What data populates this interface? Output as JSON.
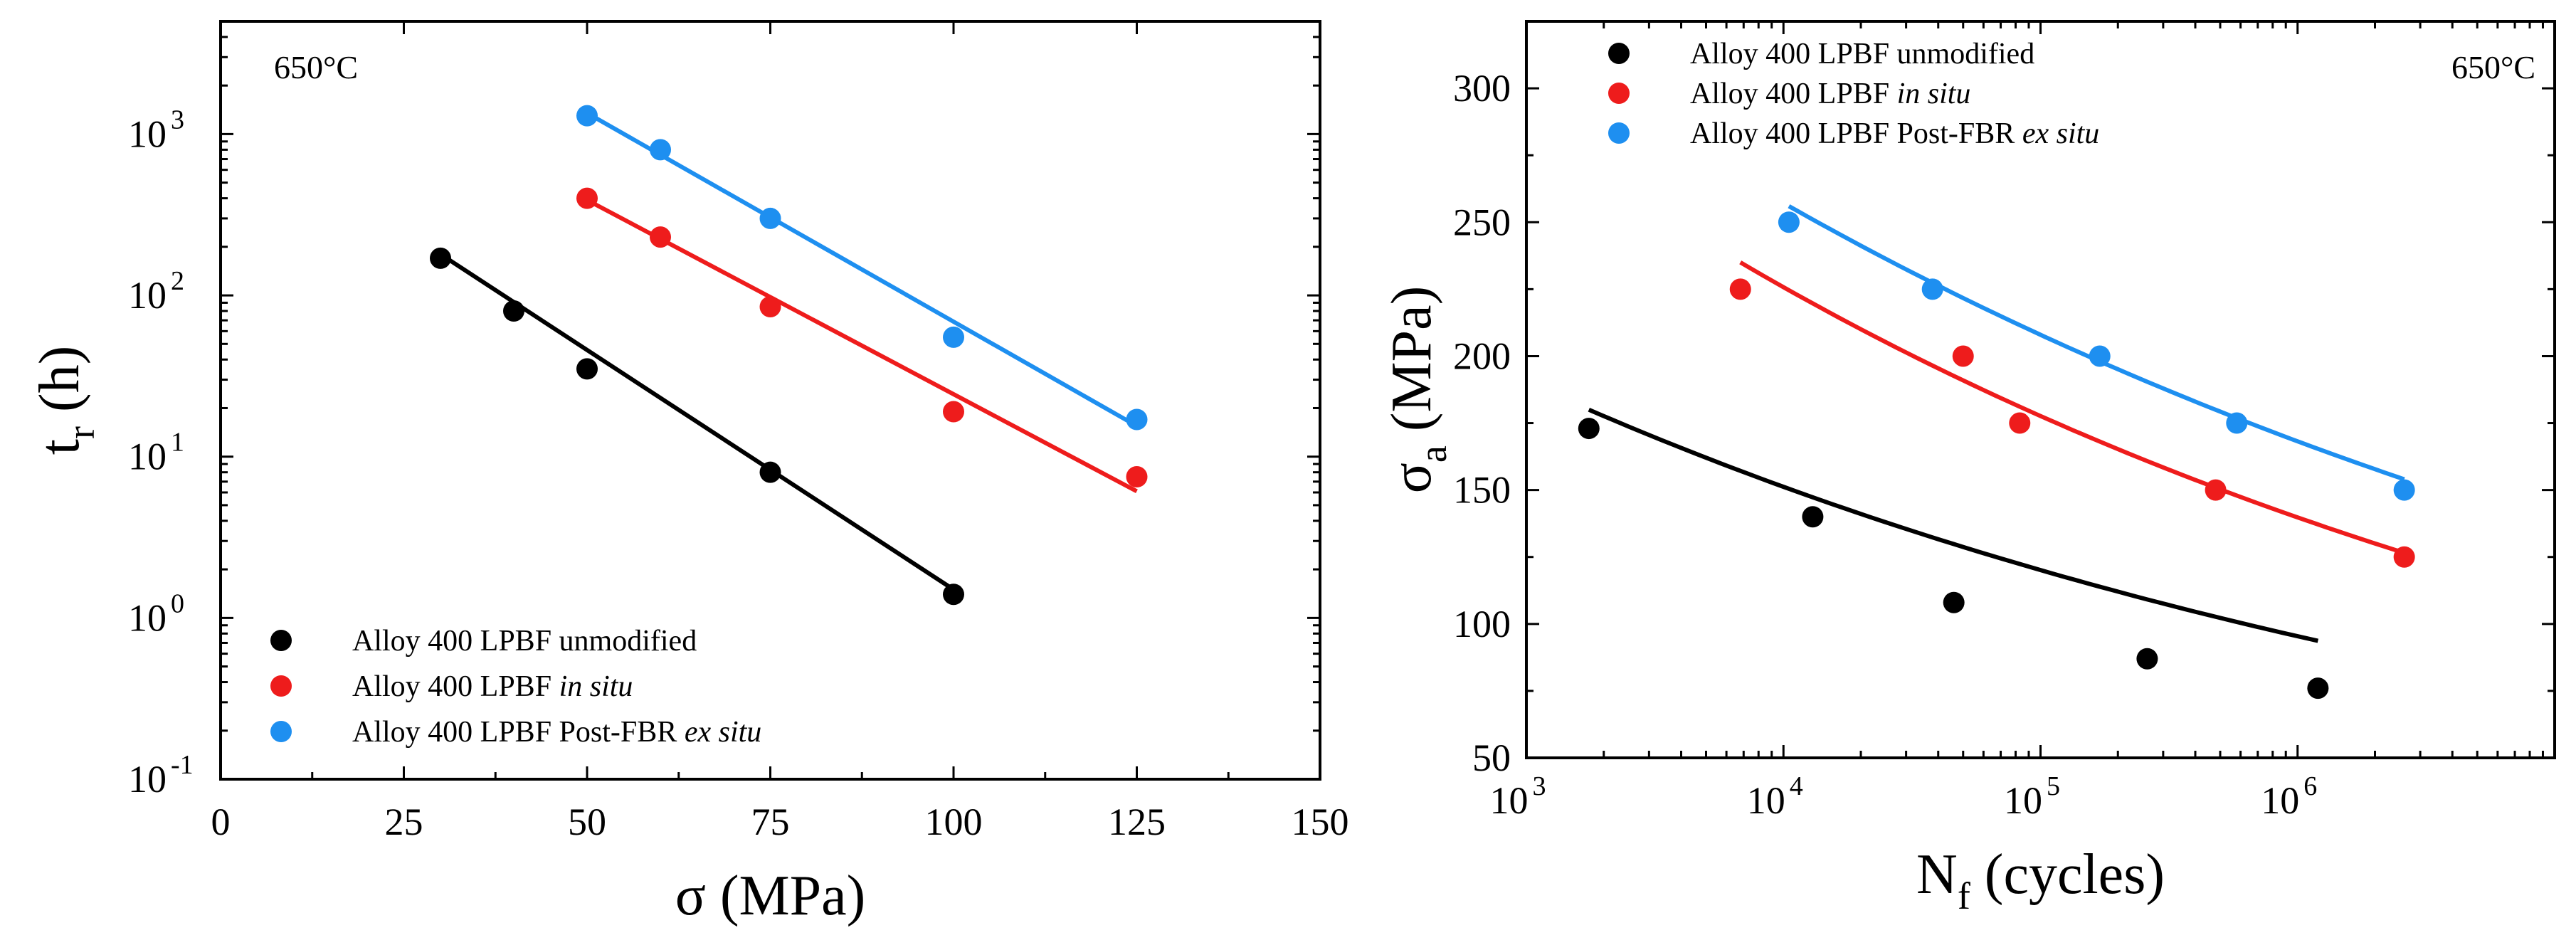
{
  "chart_data": [
    {
      "type": "scatter",
      "id": "creep",
      "annotation": "650°C",
      "xlabel": "σ (MPa)",
      "ylabel": "t",
      "ylabel_sub": "r",
      "ylabel_suffix": " (h)",
      "xscale": "linear",
      "yscale": "log",
      "xlim": [
        0,
        150
      ],
      "ylim": [
        0.1,
        5000
      ],
      "xticks": [
        0,
        25,
        50,
        75,
        100,
        125,
        150
      ],
      "xticklabels": [
        "0",
        "25",
        "50",
        "75",
        "100",
        "125",
        "150"
      ],
      "yticks": [
        0.1,
        1,
        10,
        100,
        1000
      ],
      "yticklabels": [
        {
          "base": "10",
          "exp": "-1"
        },
        {
          "base": "10",
          "exp": "0"
        },
        {
          "base": "10",
          "exp": "1"
        },
        {
          "base": "10",
          "exp": "2"
        },
        {
          "base": "10",
          "exp": "3"
        }
      ],
      "legend_position": "bottom-left",
      "series": [
        {
          "name": "Alloy 400 LPBF unmodified",
          "legend_parts": [
            {
              "text": "Alloy 400 LPBF unmodified",
              "italic": false
            }
          ],
          "color": "#000000",
          "points": [
            [
              30,
              170
            ],
            [
              40,
              80
            ],
            [
              50,
              35
            ],
            [
              75,
              8
            ],
            [
              100,
              1.4
            ]
          ],
          "fit": [
            [
              30,
              180
            ],
            [
              100,
              1.5
            ]
          ]
        },
        {
          "name": "Alloy 400 LPBF in situ",
          "legend_parts": [
            {
              "text": "Alloy 400 LPBF ",
              "italic": false
            },
            {
              "text": "in situ",
              "italic": true
            }
          ],
          "color": "#ee1c1c",
          "points": [
            [
              50,
              400
            ],
            [
              60,
              230
            ],
            [
              75,
              85
            ],
            [
              100,
              19
            ],
            [
              125,
              7.5
            ]
          ],
          "fit": [
            [
              50,
              390
            ],
            [
              125,
              6.1
            ]
          ]
        },
        {
          "name": "Alloy 400 LPBF Post-FBR ex situ",
          "legend_parts": [
            {
              "text": "Alloy 400 LPBF Post-FBR ",
              "italic": false
            },
            {
              "text": "ex situ",
              "italic": true
            }
          ],
          "color": "#1e8ff0",
          "points": [
            [
              50,
              1300
            ],
            [
              60,
              800
            ],
            [
              75,
              300
            ],
            [
              100,
              55
            ],
            [
              125,
              17
            ]
          ],
          "fit": [
            [
              50,
              1350
            ],
            [
              125,
              15.5
            ]
          ]
        }
      ]
    },
    {
      "type": "scatter",
      "id": "fatigue",
      "annotation": "650°C",
      "xlabel": "N",
      "xlabel_sub": "f",
      "xlabel_suffix": " (cycles)",
      "ylabel": "σ",
      "ylabel_sub": "a",
      "ylabel_suffix": " (MPa)",
      "xscale": "log",
      "yscale": "linear",
      "xlim": [
        1000,
        10000000
      ],
      "ylim": [
        50,
        325
      ],
      "xticks": [
        1000,
        10000,
        100000,
        1000000
      ],
      "xticklabels": [
        {
          "base": "10",
          "exp": "3"
        },
        {
          "base": "10",
          "exp": "4"
        },
        {
          "base": "10",
          "exp": "5"
        },
        {
          "base": "10",
          "exp": "6"
        }
      ],
      "yticks": [
        50,
        100,
        150,
        200,
        250,
        300
      ],
      "yticklabels": [
        "50",
        "100",
        "150",
        "200",
        "250",
        "300"
      ],
      "legend_position": "top-left",
      "series": [
        {
          "name": "Alloy 400 LPBF unmodified",
          "legend_parts": [
            {
              "text": "Alloy 400 LPBF unmodified",
              "italic": false
            }
          ],
          "color": "#000000",
          "points": [
            [
              1750,
              173
            ],
            [
              13000,
              140
            ],
            [
              46000,
              108
            ],
            [
              260000,
              87
            ],
            [
              1200000,
              76
            ]
          ],
          "fit": {
            "a": 180,
            "b": 0.1,
            "x0": 1750,
            "xmin": 1750,
            "xmax": 1200000
          }
        },
        {
          "name": "Alloy 400 LPBF in situ",
          "legend_parts": [
            {
              "text": "Alloy 400 LPBF ",
              "italic": false
            },
            {
              "text": "in situ",
              "italic": true
            }
          ],
          "color": "#ee1c1c",
          "points": [
            [
              6800,
              225
            ],
            [
              50000,
              200
            ],
            [
              83000,
              175
            ],
            [
              480000,
              150
            ],
            [
              2600000,
              125
            ]
          ],
          "fit": {
            "a": 235,
            "b": 0.1041,
            "x0": 6800,
            "xmin": 6800,
            "xmax": 2600000
          }
        },
        {
          "name": "Alloy 400 LPBF Post-FBR ex situ",
          "legend_parts": [
            {
              "text": "Alloy 400 LPBF Post-FBR ",
              "italic": false
            },
            {
              "text": "ex situ",
              "italic": true
            }
          ],
          "color": "#1e8ff0",
          "points": [
            [
              10500,
              250
            ],
            [
              38000,
              225
            ],
            [
              170000,
              200
            ],
            [
              580000,
              175
            ],
            [
              2600000,
              150
            ]
          ],
          "fit": {
            "a": 256,
            "b": 0.0922,
            "x0": 10500,
            "xmin": 10500,
            "xmax": 2600000
          }
        }
      ]
    }
  ]
}
